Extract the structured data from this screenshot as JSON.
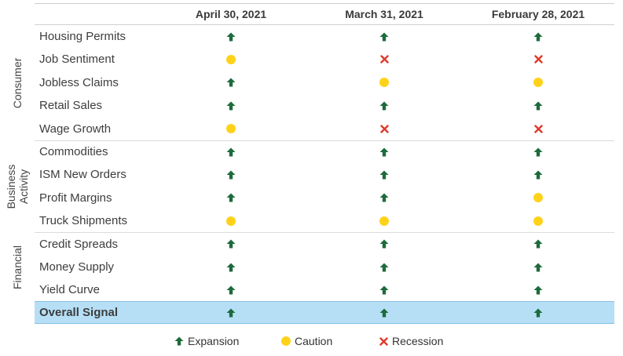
{
  "columns": [
    "April 30, 2021",
    "March 31, 2021",
    "February 28, 2021"
  ],
  "groups": [
    {
      "label_lines": [
        "Consumer"
      ],
      "rows": [
        {
          "label": "Housing Permits",
          "signals": [
            "expansion",
            "expansion",
            "expansion"
          ]
        },
        {
          "label": "Job Sentiment",
          "signals": [
            "caution",
            "recession",
            "recession"
          ]
        },
        {
          "label": "Jobless Claims",
          "signals": [
            "expansion",
            "caution",
            "caution"
          ]
        },
        {
          "label": "Retail Sales",
          "signals": [
            "expansion",
            "expansion",
            "expansion"
          ]
        },
        {
          "label": "Wage Growth",
          "signals": [
            "caution",
            "recession",
            "recession"
          ]
        }
      ]
    },
    {
      "label_lines": [
        "Business",
        "Activity"
      ],
      "rows": [
        {
          "label": "Commodities",
          "signals": [
            "expansion",
            "expansion",
            "expansion"
          ]
        },
        {
          "label": "ISM New Orders",
          "signals": [
            "expansion",
            "expansion",
            "expansion"
          ]
        },
        {
          "label": "Profit Margins",
          "signals": [
            "expansion",
            "expansion",
            "caution"
          ]
        },
        {
          "label": "Truck Shipments",
          "signals": [
            "caution",
            "caution",
            "caution"
          ]
        }
      ]
    },
    {
      "label_lines": [
        "Financial"
      ],
      "rows": [
        {
          "label": "Credit Spreads",
          "signals": [
            "expansion",
            "expansion",
            "expansion"
          ]
        },
        {
          "label": "Money Supply",
          "signals": [
            "expansion",
            "expansion",
            "expansion"
          ]
        },
        {
          "label": "Yield Curve",
          "signals": [
            "expansion",
            "expansion",
            "expansion"
          ]
        }
      ]
    }
  ],
  "overall": {
    "label": "Overall Signal",
    "signals": [
      "expansion",
      "expansion",
      "expansion"
    ]
  },
  "legend": [
    {
      "signal": "expansion",
      "label": "Expansion"
    },
    {
      "signal": "caution",
      "label": "Caution"
    },
    {
      "signal": "recession",
      "label": "Recession"
    }
  ],
  "icons": {
    "expansion": "up-arrow-icon",
    "caution": "yellow-dot-icon",
    "recession": "red-x-icon"
  },
  "colors": {
    "expansion": "#1d6b3c",
    "caution": "#ffd21a",
    "recession": "#e03a2a",
    "overall_bg": "#b6dff6"
  }
}
